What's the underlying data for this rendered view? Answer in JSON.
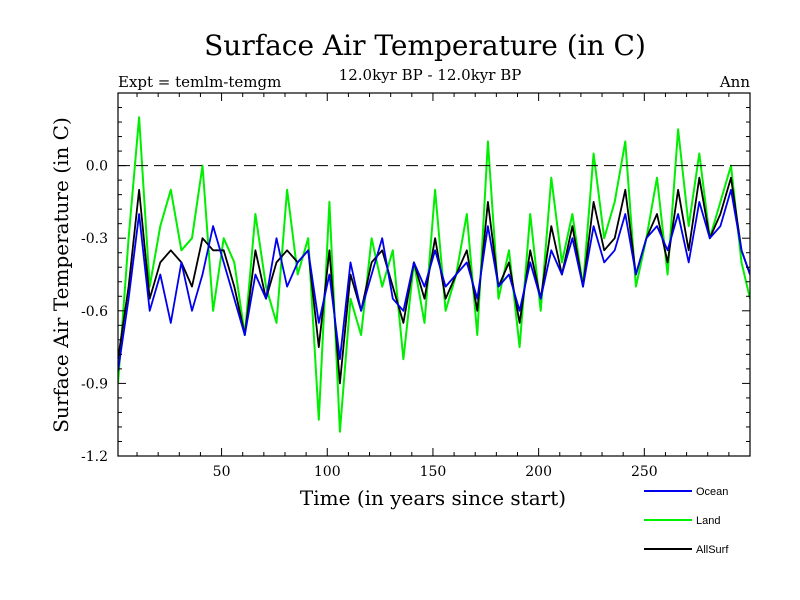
{
  "chart_data": {
    "type": "line",
    "title": "Surface Air Temperature (in C)",
    "subtitle": "12.0kyr BP - 12.0kyr BP",
    "experiment": "Expt = temlm-temgm",
    "period": "Ann",
    "xlabel": "Time (in years since start)",
    "ylabel": "Surface Air Temperature (in C)",
    "xlim": [
      1,
      300
    ],
    "ylim": [
      -1.2,
      0.3
    ],
    "x_ticks": [
      {
        "value": 50,
        "label": "50"
      },
      {
        "value": 100,
        "label": "100"
      },
      {
        "value": 150,
        "label": "150"
      },
      {
        "value": 200,
        "label": "200"
      },
      {
        "value": 250,
        "label": "250"
      }
    ],
    "y_ticks": [
      {
        "value": 0.0,
        "label": "0.0"
      },
      {
        "value": -0.3,
        "label": "-0.3"
      },
      {
        "value": -0.6,
        "label": "-0.6"
      },
      {
        "value": -0.9,
        "label": "-0.9"
      },
      {
        "value": -1.2,
        "label": "-1.2"
      }
    ],
    "reference_line": {
      "y": 0.0,
      "style": "dashed"
    },
    "x_step": 5,
    "series": [
      {
        "name": "Ocean",
        "color": "#0000ee",
        "values": [
          -0.85,
          -0.55,
          -0.2,
          -0.6,
          -0.45,
          -0.65,
          -0.4,
          -0.6,
          -0.45,
          -0.25,
          -0.4,
          -0.55,
          -0.7,
          -0.45,
          -0.55,
          -0.3,
          -0.5,
          -0.4,
          -0.35,
          -0.65,
          -0.45,
          -0.8,
          -0.4,
          -0.6,
          -0.45,
          -0.3,
          -0.55,
          -0.6,
          -0.4,
          -0.5,
          -0.35,
          -0.5,
          -0.45,
          -0.4,
          -0.55,
          -0.25,
          -0.5,
          -0.45,
          -0.6,
          -0.4,
          -0.55,
          -0.35,
          -0.45,
          -0.3,
          -0.5,
          -0.25,
          -0.4,
          -0.35,
          -0.2,
          -0.45,
          -0.3,
          -0.25,
          -0.35,
          -0.2,
          -0.4,
          -0.15,
          -0.3,
          -0.25,
          -0.1,
          -0.35,
          -0.45
        ]
      },
      {
        "name": "Land",
        "color": "#00ee00",
        "values": [
          -0.9,
          -0.3,
          0.2,
          -0.5,
          -0.25,
          -0.1,
          -0.35,
          -0.3,
          0.0,
          -0.6,
          -0.3,
          -0.4,
          -0.7,
          -0.2,
          -0.5,
          -0.65,
          -0.1,
          -0.45,
          -0.3,
          -1.05,
          -0.15,
          -1.1,
          -0.55,
          -0.7,
          -0.3,
          -0.5,
          -0.35,
          -0.8,
          -0.4,
          -0.65,
          -0.1,
          -0.6,
          -0.45,
          -0.2,
          -0.7,
          0.1,
          -0.55,
          -0.35,
          -0.75,
          -0.2,
          -0.6,
          -0.05,
          -0.4,
          -0.2,
          -0.5,
          0.05,
          -0.3,
          -0.15,
          0.1,
          -0.5,
          -0.3,
          -0.05,
          -0.45,
          0.15,
          -0.25,
          0.05,
          -0.3,
          -0.15,
          0.0,
          -0.4,
          -0.55
        ]
      },
      {
        "name": "AllSurf",
        "color": "#000000",
        "values": [
          -0.8,
          -0.5,
          -0.1,
          -0.55,
          -0.4,
          -0.35,
          -0.4,
          -0.5,
          -0.3,
          -0.35,
          -0.35,
          -0.5,
          -0.7,
          -0.35,
          -0.55,
          -0.4,
          -0.35,
          -0.4,
          -0.35,
          -0.75,
          -0.35,
          -0.9,
          -0.45,
          -0.6,
          -0.4,
          -0.35,
          -0.5,
          -0.65,
          -0.4,
          -0.55,
          -0.3,
          -0.55,
          -0.45,
          -0.35,
          -0.6,
          -0.15,
          -0.5,
          -0.4,
          -0.65,
          -0.35,
          -0.55,
          -0.25,
          -0.45,
          -0.25,
          -0.5,
          -0.15,
          -0.35,
          -0.3,
          -0.1,
          -0.45,
          -0.3,
          -0.2,
          -0.4,
          -0.1,
          -0.35,
          -0.05,
          -0.3,
          -0.2,
          -0.05,
          -0.35,
          -0.45
        ]
      }
    ],
    "legend": {
      "placement": "bottom-right",
      "items": [
        "Ocean",
        "Land",
        "AllSurf"
      ]
    }
  }
}
